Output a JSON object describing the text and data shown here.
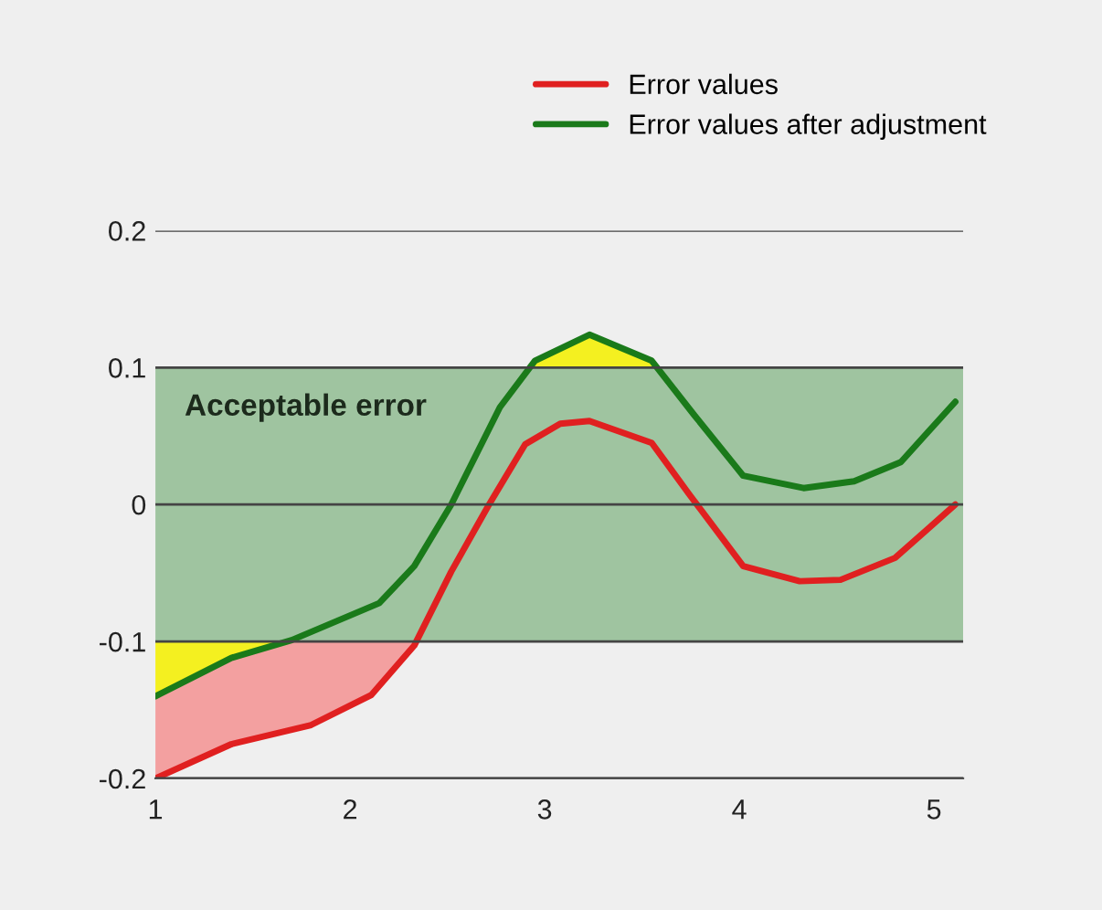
{
  "chart_data": {
    "type": "line",
    "series": [
      {
        "name": "Error values",
        "color": "#e02020",
        "x": [
          1,
          1.39,
          1.8,
          2.11,
          2.33,
          2.52,
          2.71,
          2.9,
          3.08,
          3.23,
          3.55,
          3.74,
          4.02,
          4.31,
          4.52,
          4.8,
          5.11
        ],
        "values": [
          -0.2,
          -0.175,
          -0.161,
          -0.139,
          -0.103,
          -0.049,
          -0.001,
          0.044,
          0.059,
          0.061,
          0.045,
          0.008,
          -0.045,
          -0.056,
          -0.055,
          -0.039,
          0.0
        ]
      },
      {
        "name": "Error values after adjustment",
        "color": "#1a7a1a",
        "x": [
          1,
          1.39,
          1.7,
          2.15,
          2.33,
          2.52,
          2.77,
          2.95,
          3.23,
          3.55,
          3.77,
          4.02,
          4.33,
          4.59,
          4.83,
          5.11
        ],
        "values": [
          -0.14,
          -0.112,
          -0.099,
          -0.072,
          -0.045,
          0.0,
          0.071,
          0.105,
          0.124,
          0.105,
          0.065,
          0.021,
          0.012,
          0.017,
          0.031,
          0.075
        ]
      }
    ],
    "xlim": [
      1,
      5.15
    ],
    "xticks": [
      1,
      2,
      3,
      4,
      5
    ],
    "ylim": [
      -0.2,
      0.2
    ],
    "yticks": [
      -0.2,
      -0.1,
      0,
      0.1,
      0.2
    ],
    "bands": [
      {
        "axis": "y",
        "from": -0.1,
        "to": 0.1,
        "label": "Acceptable error",
        "color": "#9fc4a0"
      }
    ],
    "grid": "y",
    "legend": "top right",
    "line_style": "solid",
    "marker": "none"
  }
}
